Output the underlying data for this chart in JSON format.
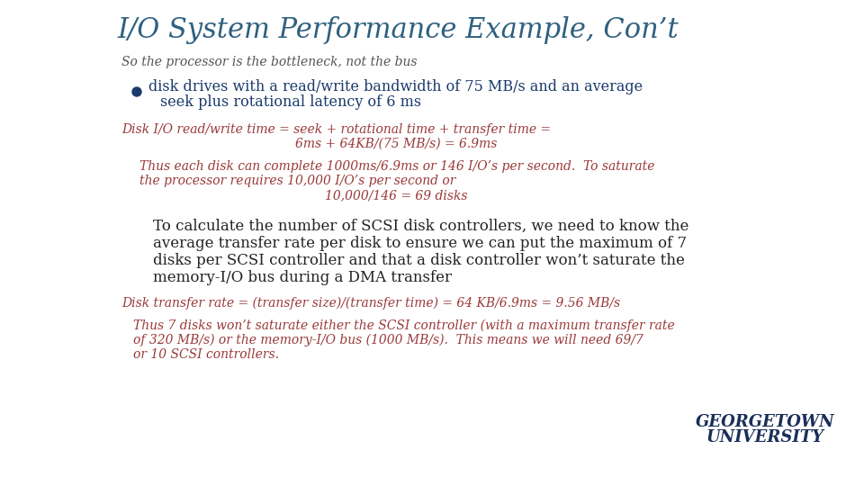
{
  "title": "I/O System Performance Example, Con’t",
  "subtitle": "So the processor is the bottleneck, not the bus",
  "title_color": "#2E6080",
  "subtitle_color": "#555555",
  "bullet_color": "#1a3a6b",
  "bullet_text_line1": "disk drives with a read/write bandwidth of 75 MB/s and an average",
  "bullet_text_line2": "seek plus rotational latency of 6 ms",
  "equation_color": "#9a3a3a",
  "equation1_line1": "Disk I/O read/write time = seek + rotational time + transfer time =",
  "equation1_line2": "6ms + 64KB/(75 MB/s) = 6.9ms",
  "thus1_line1": "Thus each disk can complete 1000ms/6.9ms or 146 I/O’s per second.  To saturate",
  "thus1_line2": "the processor requires 10,000 I/O’s per second or",
  "thus1_line3": "10,000/146 = 69 disks",
  "body_color": "#222222",
  "body_text_line1": "To calculate the number of SCSI disk controllers, we need to know the",
  "body_text_line2": "average transfer rate per disk to ensure we can put the maximum of 7",
  "body_text_line3": "disks per SCSI controller and that a disk controller won’t saturate the",
  "body_text_line4": "memory-I/O bus during a DMA transfer",
  "equation2": "Disk transfer rate = (transfer size)/(transfer time) = 64 KB/6.9ms = 9.56 MB/s",
  "thus2_line1": "Thus 7 disks won’t saturate either the SCSI controller (with a maximum transfer rate",
  "thus2_line2": "of 320 MB/s) or the memory-I/O bus (1000 MB/s).  This means we will need 69/7",
  "thus2_line3": "or 10 SCSI controllers.",
  "georgetown_line1": "GEORGETOWN",
  "georgetown_line2": "UNIVERSITY",
  "georgetown_color": "#1a2e5a",
  "background_color": "#ffffff"
}
